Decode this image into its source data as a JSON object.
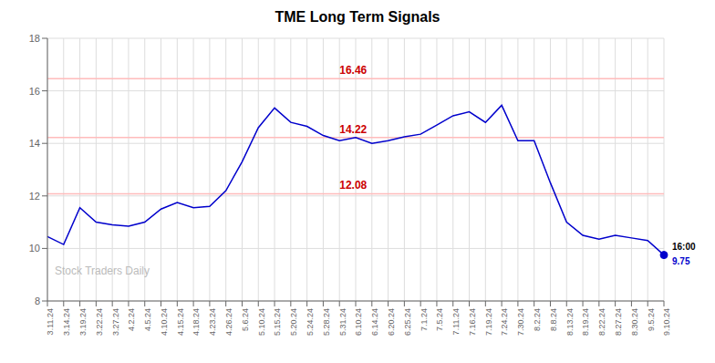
{
  "chart_data": {
    "type": "line",
    "title": "TME Long Term Signals",
    "categories": [
      "3.11.24",
      "3.14.24",
      "3.19.24",
      "3.22.24",
      "3.27.24",
      "4.2.24",
      "4.5.24",
      "4.10.24",
      "4.15.24",
      "4.18.24",
      "4.23.24",
      "4.26.24",
      "5.6.24",
      "5.10.24",
      "5.15.24",
      "5.20.24",
      "5.24.24",
      "5.28.24",
      "5.31.24",
      "6.10.24",
      "6.14.24",
      "6.20.24",
      "6.25.24",
      "7.1.24",
      "7.5.24",
      "7.11.24",
      "7.16.24",
      "7.19.24",
      "7.24.24",
      "7.30.24",
      "8.2.24",
      "8.8.24",
      "8.13.24",
      "8.19.24",
      "8.22.24",
      "8.27.24",
      "8.30.24",
      "9.5.24",
      "9.10.24"
    ],
    "values": [
      10.45,
      10.15,
      11.55,
      11.0,
      10.9,
      10.85,
      11.0,
      11.5,
      11.75,
      11.55,
      11.6,
      12.2,
      13.3,
      14.6,
      15.35,
      14.8,
      14.65,
      14.3,
      14.1,
      14.22,
      14.0,
      14.1,
      14.25,
      14.35,
      14.7,
      15.05,
      15.2,
      14.8,
      15.45,
      14.1,
      14.1,
      12.5,
      11.0,
      10.5,
      10.35,
      10.5,
      10.4,
      10.3,
      9.75
    ],
    "color": "#0000cc",
    "marker": "circle",
    "ylim": [
      8,
      18
    ],
    "yticks": [
      8,
      10,
      12,
      14,
      16,
      18
    ],
    "grid": true,
    "reference_lines": [
      {
        "y": 16.46,
        "label": "16.46",
        "color": "#ffbbbb",
        "label_color": "#cc0000",
        "label_category": "5.31.24"
      },
      {
        "y": 14.22,
        "label": "14.22",
        "color": "#ffbbbb",
        "label_color": "#cc0000",
        "label_category": "5.31.24"
      },
      {
        "y": 12.08,
        "label": "12.08",
        "color": "#ffbbbb",
        "label_color": "#cc0000",
        "label_category": "5.31.24"
      }
    ],
    "annotations": [
      {
        "text": "16:00",
        "color": "#000000"
      },
      {
        "text": "9.75",
        "color": "#0000cc"
      }
    ],
    "watermark": {
      "text": "Stock Traders Daily",
      "color": "#bbbbbb"
    }
  }
}
